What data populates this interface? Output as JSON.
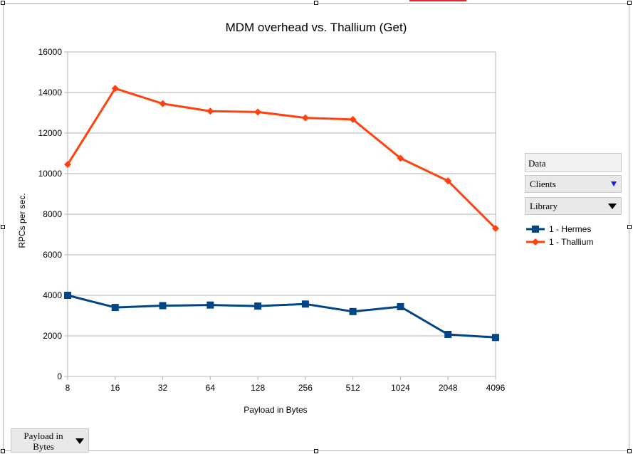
{
  "chart_data": {
    "type": "line",
    "title": "MDM overhead vs. Thallium (Get)",
    "xlabel": "Payload in Bytes",
    "ylabel": "RPCs per sec.",
    "categories": [
      "8",
      "16",
      "32",
      "64",
      "128",
      "256",
      "512",
      "1024",
      "2048",
      "4096"
    ],
    "ylim": [
      0,
      16000
    ],
    "yticks": [
      "0",
      "2000",
      "4000",
      "6000",
      "8000",
      "10000",
      "12000",
      "14000",
      "16000"
    ],
    "grid": true,
    "legend_position": "right",
    "series": [
      {
        "name": "1 - Hermes",
        "color": "#004586",
        "marker": "square",
        "values": [
          4000,
          3400,
          3490,
          3520,
          3470,
          3570,
          3200,
          3440,
          2070,
          1920
        ]
      },
      {
        "name": "1 - Thallium",
        "color": "#ff420e",
        "marker": "diamond",
        "values": [
          10450,
          14200,
          13450,
          13080,
          13040,
          12750,
          12670,
          10760,
          9640,
          7300
        ]
      }
    ]
  },
  "pivot": {
    "data_field": "Data",
    "clients_field": "Clients",
    "library_field": "Library",
    "category_field": "Payload in Bytes"
  },
  "colors": {
    "clients_arrow": "#1a1ae6"
  }
}
